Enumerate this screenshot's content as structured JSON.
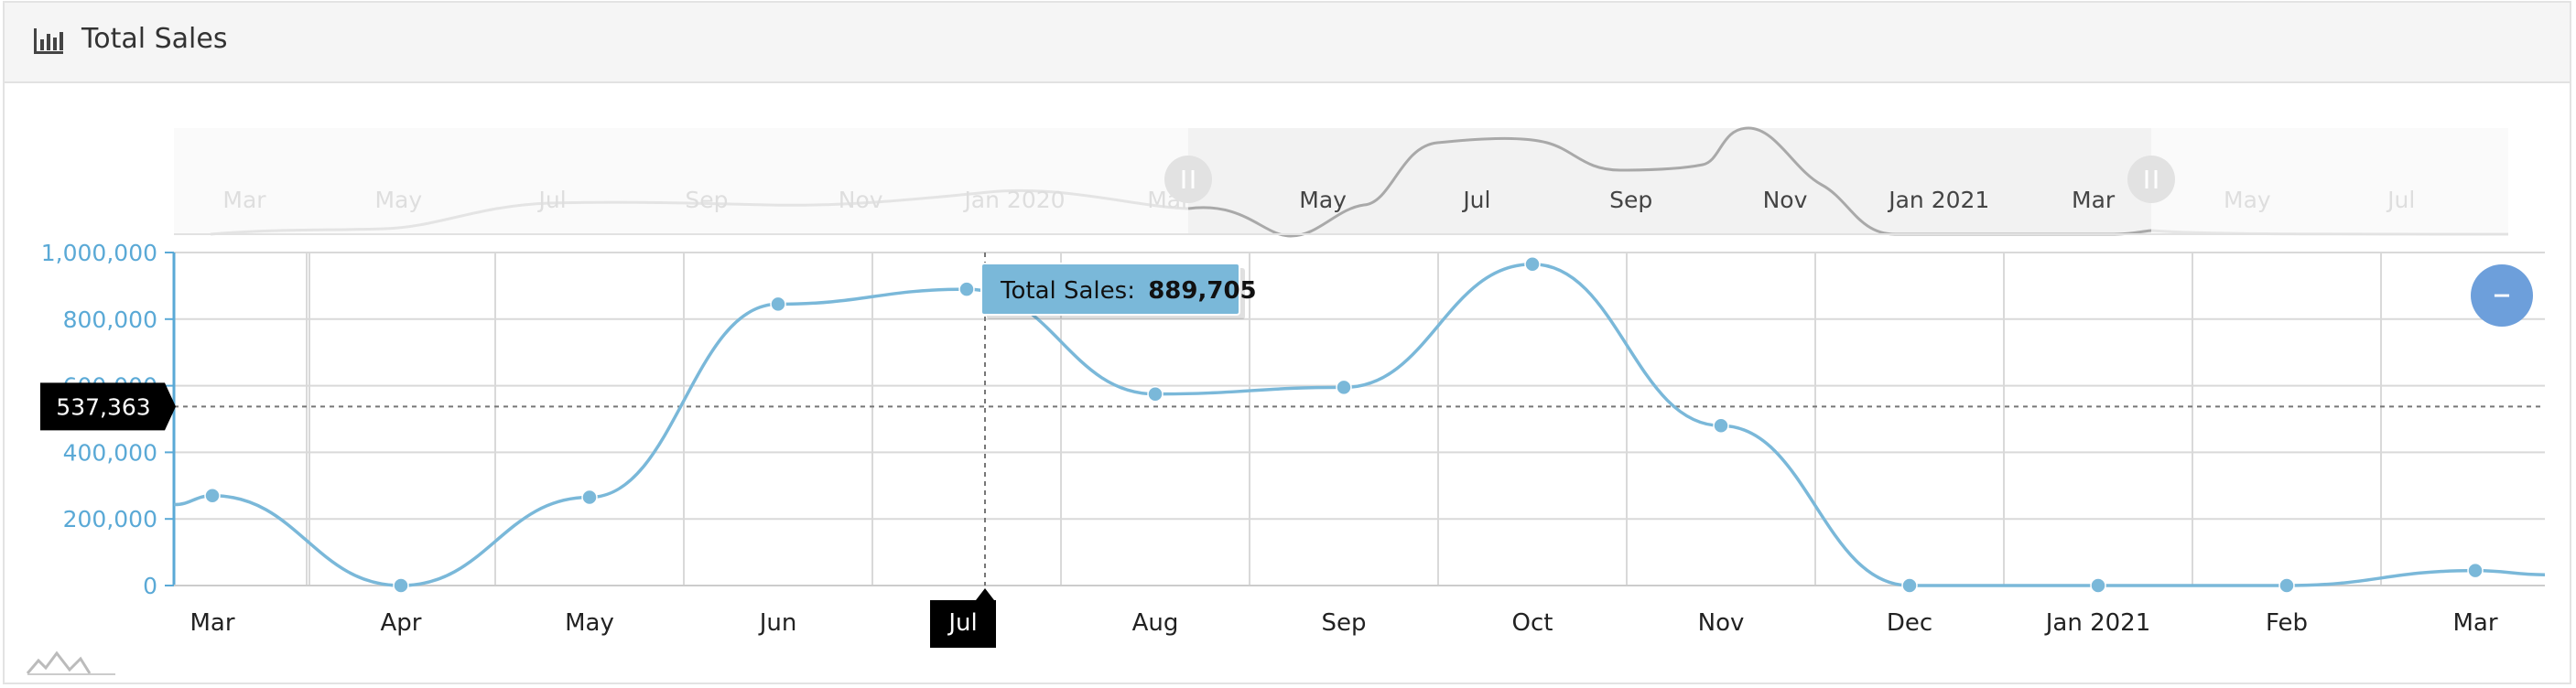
{
  "panel": {
    "title": "Total Sales",
    "icon": "bar-chart-icon"
  },
  "zoom_button": {
    "label": "–",
    "icon": "zoom-out-icon"
  },
  "tooltip": {
    "label": "Total Sales:",
    "value": "889,705"
  },
  "crosshair": {
    "y_label": "537,363",
    "y_value": 537363,
    "x_label": "Jul"
  },
  "navigator": {
    "ticks": [
      "Mar",
      "May",
      "Jul",
      "Sep",
      "Nov",
      "Jan 2020",
      "Mar",
      "May",
      "Jul",
      "Sep",
      "Nov",
      "Jan 2021",
      "Mar",
      "May",
      "Jul"
    ]
  },
  "colors": {
    "line": "#7ab8d9",
    "axis_text": "#5aa9d6",
    "button": "#6d9fdb"
  },
  "chart_data": {
    "type": "line",
    "categories": [
      "Mar",
      "Apr",
      "May",
      "Jun",
      "Jul",
      "Aug",
      "Sep",
      "Oct",
      "Nov",
      "Dec",
      "Jan 2021",
      "Feb",
      "Mar"
    ],
    "series": [
      {
        "name": "Total Sales",
        "values": [
          270000,
          0,
          265000,
          845000,
          889705,
          575000,
          595000,
          965000,
          480000,
          0,
          0,
          0,
          45000
        ]
      }
    ],
    "y_ticks": [
      "0",
      "200,000",
      "400,000",
      "600,000",
      "800,000",
      "1,000,000"
    ],
    "ylim": [
      0,
      1000000
    ],
    "grid": true,
    "xlabel": "",
    "ylabel": ""
  }
}
